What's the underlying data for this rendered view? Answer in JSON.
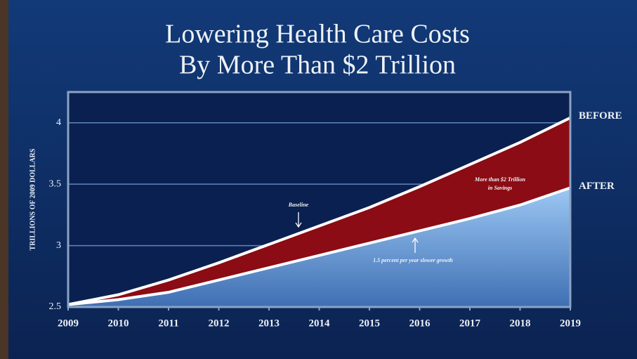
{
  "chart_data": {
    "type": "area",
    "title": [
      "Lowering Health Care Costs",
      "By More Than $2 Trillion"
    ],
    "y_label": "TRILLIONS OF 2009 DOLLARS",
    "x": [
      2009,
      2010,
      2011,
      2012,
      2013,
      2014,
      2015,
      2016,
      2017,
      2018,
      2019
    ],
    "series": [
      {
        "name": "BEFORE",
        "color": "#8b0c14",
        "values": [
          2.52,
          2.6,
          2.72,
          2.86,
          3.01,
          3.16,
          3.31,
          3.48,
          3.66,
          3.84,
          4.04
        ]
      },
      {
        "name": "AFTER",
        "color": "#8fbcec",
        "values": [
          2.52,
          2.56,
          2.62,
          2.72,
          2.82,
          2.92,
          3.02,
          3.12,
          3.22,
          3.33,
          3.47
        ]
      }
    ],
    "annotations": [
      "Baseline",
      "More than $2 Trillion",
      "in Savings",
      "1.5 percent per year slower growth"
    ],
    "xlim": [
      2009,
      2019
    ],
    "xticks": [
      2009,
      2010,
      2011,
      2012,
      2013,
      2014,
      2015,
      2016,
      2017,
      2018,
      2019
    ],
    "ylim": [
      2.5,
      4.25
    ],
    "yticks": [
      2.5,
      3,
      3.5,
      4
    ],
    "grid": true
  }
}
